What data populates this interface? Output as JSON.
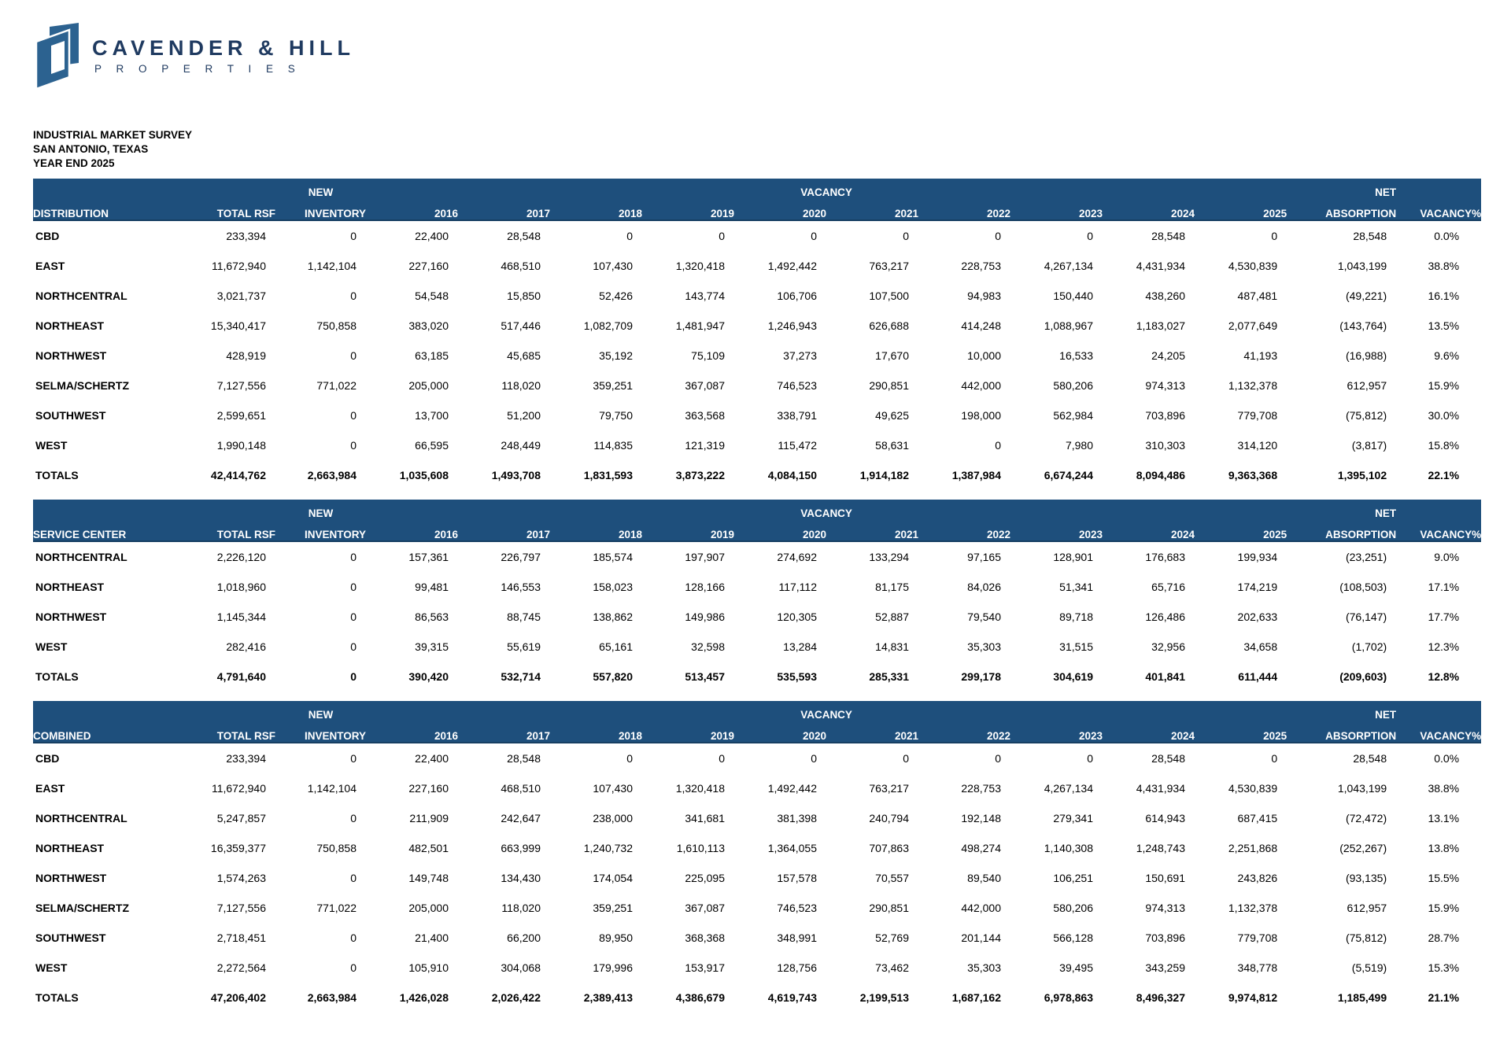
{
  "logo": {
    "name": "CAVENDER & HILL",
    "subtitle": "P R O P E R T I E S"
  },
  "titles": {
    "line1": "INDUSTRIAL MARKET SURVEY",
    "line2": "SAN ANTONIO, TEXAS",
    "line3": "YEAR END 2025"
  },
  "groups": {
    "new": "NEW",
    "vacancy": "VACANCY",
    "net": "NET"
  },
  "columns": {
    "total_rsf": "TOTAL RSF",
    "inventory": "INVENTORY",
    "years": [
      "2016",
      "2017",
      "2018",
      "2019",
      "2020",
      "2021",
      "2022",
      "2023",
      "2024",
      "2025"
    ],
    "absorption": "ABSORPTION",
    "vacancy_pct": "VACANCY%"
  },
  "colors": {
    "header_bg": "#1E4F7C",
    "header_text": "#FFFFFF",
    "logo_blue": "#2C6290",
    "logo_text": "#1F3A60"
  },
  "tables": [
    {
      "label": "DISTRIBUTION",
      "rows": [
        {
          "name": "CBD",
          "total": false,
          "values": [
            "233,394",
            "0",
            "22,400",
            "28,548",
            "0",
            "0",
            "0",
            "0",
            "0",
            "0",
            "28,548",
            "0",
            "28,548",
            "0.0%"
          ]
        },
        {
          "name": "EAST",
          "total": false,
          "values": [
            "11,672,940",
            "1,142,104",
            "227,160",
            "468,510",
            "107,430",
            "1,320,418",
            "1,492,442",
            "763,217",
            "228,753",
            "4,267,134",
            "4,431,934",
            "4,530,839",
            "1,043,199",
            "38.8%"
          ]
        },
        {
          "name": "NORTHCENTRAL",
          "total": false,
          "values": [
            "3,021,737",
            "0",
            "54,548",
            "15,850",
            "52,426",
            "143,774",
            "106,706",
            "107,500",
            "94,983",
            "150,440",
            "438,260",
            "487,481",
            "(49,221)",
            "16.1%"
          ]
        },
        {
          "name": "NORTHEAST",
          "total": false,
          "values": [
            "15,340,417",
            "750,858",
            "383,020",
            "517,446",
            "1,082,709",
            "1,481,947",
            "1,246,943",
            "626,688",
            "414,248",
            "1,088,967",
            "1,183,027",
            "2,077,649",
            "(143,764)",
            "13.5%"
          ]
        },
        {
          "name": "NORTHWEST",
          "total": false,
          "values": [
            "428,919",
            "0",
            "63,185",
            "45,685",
            "35,192",
            "75,109",
            "37,273",
            "17,670",
            "10,000",
            "16,533",
            "24,205",
            "41,193",
            "(16,988)",
            "9.6%"
          ]
        },
        {
          "name": "SELMA/SCHERTZ",
          "total": false,
          "values": [
            "7,127,556",
            "771,022",
            "205,000",
            "118,020",
            "359,251",
            "367,087",
            "746,523",
            "290,851",
            "442,000",
            "580,206",
            "974,313",
            "1,132,378",
            "612,957",
            "15.9%"
          ]
        },
        {
          "name": "SOUTHWEST",
          "total": false,
          "values": [
            "2,599,651",
            "0",
            "13,700",
            "51,200",
            "79,750",
            "363,568",
            "338,791",
            "49,625",
            "198,000",
            "562,984",
            "703,896",
            "779,708",
            "(75,812)",
            "30.0%"
          ]
        },
        {
          "name": "WEST",
          "total": false,
          "values": [
            "1,990,148",
            "0",
            "66,595",
            "248,449",
            "114,835",
            "121,319",
            "115,472",
            "58,631",
            "0",
            "7,980",
            "310,303",
            "314,120",
            "(3,817)",
            "15.8%"
          ]
        },
        {
          "name": "TOTALS",
          "total": true,
          "values": [
            "42,414,762",
            "2,663,984",
            "1,035,608",
            "1,493,708",
            "1,831,593",
            "3,873,222",
            "4,084,150",
            "1,914,182",
            "1,387,984",
            "6,674,244",
            "8,094,486",
            "9,363,368",
            "1,395,102",
            "22.1%"
          ]
        }
      ]
    },
    {
      "label": "SERVICE CENTER",
      "rows": [
        {
          "name": "NORTHCENTRAL",
          "total": false,
          "values": [
            "2,226,120",
            "0",
            "157,361",
            "226,797",
            "185,574",
            "197,907",
            "274,692",
            "133,294",
            "97,165",
            "128,901",
            "176,683",
            "199,934",
            "(23,251)",
            "9.0%"
          ]
        },
        {
          "name": "NORTHEAST",
          "total": false,
          "values": [
            "1,018,960",
            "0",
            "99,481",
            "146,553",
            "158,023",
            "128,166",
            "117,112",
            "81,175",
            "84,026",
            "51,341",
            "65,716",
            "174,219",
            "(108,503)",
            "17.1%"
          ]
        },
        {
          "name": "NORTHWEST",
          "total": false,
          "values": [
            "1,145,344",
            "0",
            "86,563",
            "88,745",
            "138,862",
            "149,986",
            "120,305",
            "52,887",
            "79,540",
            "89,718",
            "126,486",
            "202,633",
            "(76,147)",
            "17.7%"
          ]
        },
        {
          "name": "WEST",
          "total": false,
          "values": [
            "282,416",
            "0",
            "39,315",
            "55,619",
            "65,161",
            "32,598",
            "13,284",
            "14,831",
            "35,303",
            "31,515",
            "32,956",
            "34,658",
            "(1,702)",
            "12.3%"
          ]
        },
        {
          "name": "TOTALS",
          "total": true,
          "values": [
            "4,791,640",
            "0",
            "390,420",
            "532,714",
            "557,820",
            "513,457",
            "535,593",
            "285,331",
            "299,178",
            "304,619",
            "401,841",
            "611,444",
            "(209,603)",
            "12.8%"
          ]
        }
      ]
    },
    {
      "label": "COMBINED",
      "rows": [
        {
          "name": "CBD",
          "total": false,
          "values": [
            "233,394",
            "0",
            "22,400",
            "28,548",
            "0",
            "0",
            "0",
            "0",
            "0",
            "0",
            "28,548",
            "0",
            "28,548",
            "0.0%"
          ]
        },
        {
          "name": "EAST",
          "total": false,
          "values": [
            "11,672,940",
            "1,142,104",
            "227,160",
            "468,510",
            "107,430",
            "1,320,418",
            "1,492,442",
            "763,217",
            "228,753",
            "4,267,134",
            "4,431,934",
            "4,530,839",
            "1,043,199",
            "38.8%"
          ]
        },
        {
          "name": "NORTHCENTRAL",
          "total": false,
          "values": [
            "5,247,857",
            "0",
            "211,909",
            "242,647",
            "238,000",
            "341,681",
            "381,398",
            "240,794",
            "192,148",
            "279,341",
            "614,943",
            "687,415",
            "(72,472)",
            "13.1%"
          ]
        },
        {
          "name": "NORTHEAST",
          "total": false,
          "values": [
            "16,359,377",
            "750,858",
            "482,501",
            "663,999",
            "1,240,732",
            "1,610,113",
            "1,364,055",
            "707,863",
            "498,274",
            "1,140,308",
            "1,248,743",
            "2,251,868",
            "(252,267)",
            "13.8%"
          ]
        },
        {
          "name": "NORTHWEST",
          "total": false,
          "values": [
            "1,574,263",
            "0",
            "149,748",
            "134,430",
            "174,054",
            "225,095",
            "157,578",
            "70,557",
            "89,540",
            "106,251",
            "150,691",
            "243,826",
            "(93,135)",
            "15.5%"
          ]
        },
        {
          "name": "SELMA/SCHERTZ",
          "total": false,
          "values": [
            "7,127,556",
            "771,022",
            "205,000",
            "118,020",
            "359,251",
            "367,087",
            "746,523",
            "290,851",
            "442,000",
            "580,206",
            "974,313",
            "1,132,378",
            "612,957",
            "15.9%"
          ]
        },
        {
          "name": "SOUTHWEST",
          "total": false,
          "values": [
            "2,718,451",
            "0",
            "21,400",
            "66,200",
            "89,950",
            "368,368",
            "348,991",
            "52,769",
            "201,144",
            "566,128",
            "703,896",
            "779,708",
            "(75,812)",
            "28.7%"
          ]
        },
        {
          "name": "WEST",
          "total": false,
          "values": [
            "2,272,564",
            "0",
            "105,910",
            "304,068",
            "179,996",
            "153,917",
            "128,756",
            "73,462",
            "35,303",
            "39,495",
            "343,259",
            "348,778",
            "(5,519)",
            "15.3%"
          ]
        },
        {
          "name": "TOTALS",
          "total": true,
          "values": [
            "47,206,402",
            "2,663,984",
            "1,426,028",
            "2,026,422",
            "2,389,413",
            "4,386,679",
            "4,619,743",
            "2,199,513",
            "1,687,162",
            "6,978,863",
            "8,496,327",
            "9,974,812",
            "1,185,499",
            "21.1%"
          ]
        }
      ]
    }
  ]
}
